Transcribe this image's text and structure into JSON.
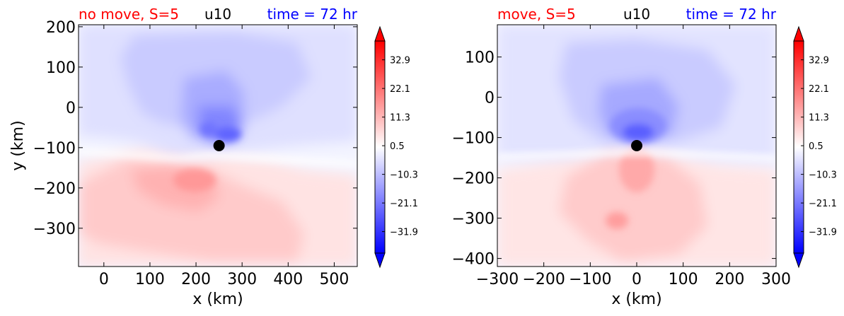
{
  "colors": {
    "left_title": "#ff0000",
    "center_title": "#000000",
    "right_title": "#0000ff"
  },
  "chart_data": [
    {
      "type": "heatmap",
      "title_left": "no move, S=5",
      "title_center": "u10",
      "title_right": "time = 72 hr",
      "xlabel": "x (km)",
      "ylabel": "y (km)",
      "xlim": [
        -55,
        550
      ],
      "ylim": [
        -395,
        205
      ],
      "xticks": [
        0,
        100,
        200,
        300,
        400,
        500
      ],
      "xtick_labels": [
        "0",
        "100",
        "200",
        "300",
        "400",
        "500"
      ],
      "yticks": [
        200,
        100,
        0,
        -100,
        -200,
        -300
      ],
      "ytick_labels": [
        "200",
        "100",
        "0",
        "−100",
        "−200",
        "−300"
      ],
      "marker": {
        "x": 250,
        "y": -95
      },
      "colorbar": {
        "cmap": "bwr",
        "extend": "both",
        "vmin": -40,
        "vmax": 40,
        "tick_values": [
          32.9,
          22.1,
          11.3,
          0.5,
          -10.3,
          -21.1,
          -31.9
        ],
        "tick_labels": [
          "32.9",
          "22.1",
          "11.3",
          "0.5",
          "−10.3",
          "−21.1",
          "−31.9"
        ]
      }
    },
    {
      "type": "heatmap",
      "title_left": "move, S=5",
      "title_center": "u10",
      "title_right": "time = 72 hr",
      "xlabel": "x (km)",
      "ylabel": "",
      "xlim": [
        -300,
        300
      ],
      "ylim": [
        -420,
        180
      ],
      "xticks": [
        -300,
        -200,
        -100,
        0,
        100,
        200,
        300
      ],
      "xtick_labels": [
        "−300",
        "−200",
        "−100",
        "0",
        "100",
        "200",
        "300"
      ],
      "yticks": [
        100,
        0,
        -100,
        -200,
        -300,
        -400
      ],
      "ytick_labels": [
        "100",
        "0",
        "−100",
        "−200",
        "−300",
        "−400"
      ],
      "marker": {
        "x": 0,
        "y": -120
      },
      "colorbar": {
        "cmap": "bwr",
        "extend": "both",
        "vmin": -40,
        "vmax": 40,
        "tick_values": [
          32.9,
          22.1,
          11.3,
          0.5,
          -10.3,
          -21.1,
          -31.9
        ],
        "tick_labels": [
          "32.9",
          "22.1",
          "11.3",
          "0.5",
          "−10.3",
          "−21.1",
          "−31.9"
        ]
      }
    }
  ]
}
